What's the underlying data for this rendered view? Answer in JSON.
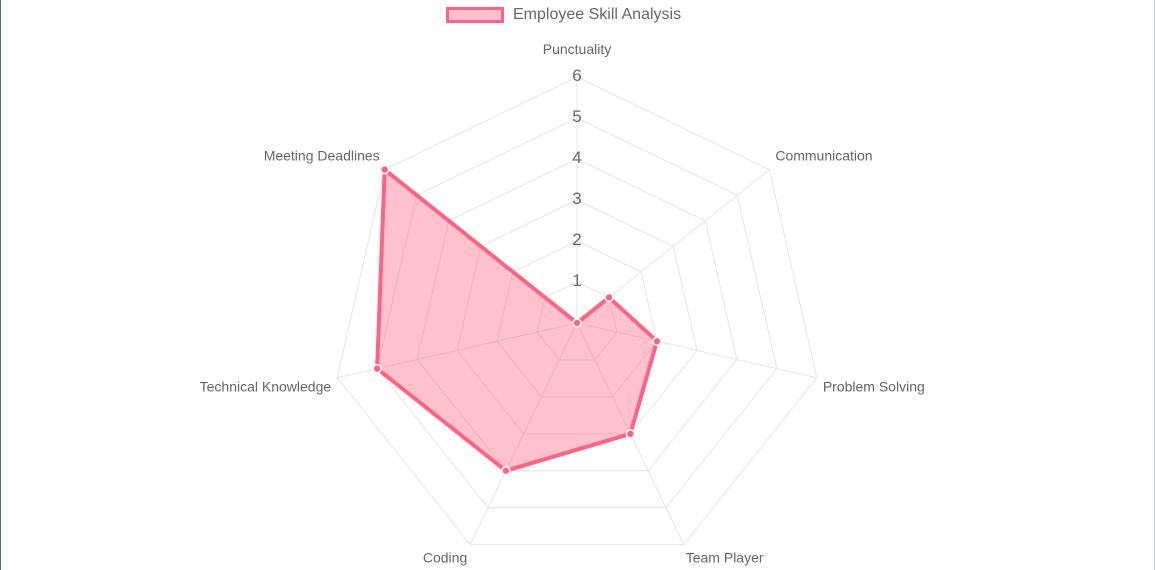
{
  "chart_data": {
    "type": "radar",
    "title": "",
    "legend": {
      "position": "top",
      "entries": [
        "Employee Skill Analysis"
      ]
    },
    "categories": [
      "Punctuality",
      "Communication",
      "Problem Solving",
      "Team Player",
      "Coding",
      "Technical Knowledge",
      "Meeting Deadlines"
    ],
    "series": [
      {
        "name": "Employee Skill Analysis",
        "values": [
          0,
          1,
          2,
          3,
          4,
          5,
          6
        ],
        "border_color": "#ff6384",
        "fill_color": "rgba(255,99,132,0.4)"
      }
    ],
    "r_range": [
      0,
      6
    ],
    "r_ticks": [
      "1",
      "2",
      "3",
      "4",
      "5",
      "6"
    ],
    "grid": true,
    "colors": {
      "grid": "#e4e4e4",
      "label": "#666666"
    }
  }
}
